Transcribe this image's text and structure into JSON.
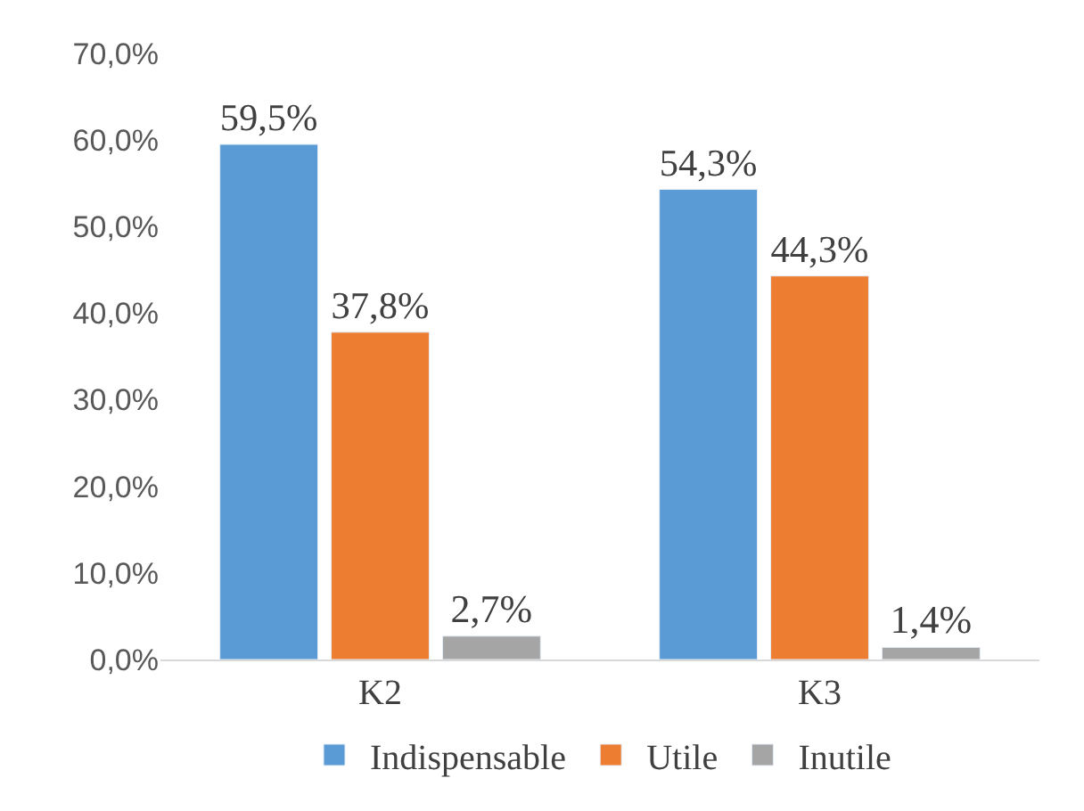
{
  "chart_data": {
    "type": "bar",
    "categories": [
      "K2",
      "K3"
    ],
    "series": [
      {
        "name": "Indispensable",
        "color": "#5b9bd5",
        "values": [
          59.5,
          54.3
        ],
        "value_labels": [
          "59,5%",
          "54,3%"
        ]
      },
      {
        "name": "Utile",
        "color": "#ed7d31",
        "values": [
          37.8,
          44.3
        ],
        "value_labels": [
          "37,8%",
          "44,3%"
        ]
      },
      {
        "name": "Inutile",
        "color": "#a5a5a5",
        "values": [
          2.7,
          1.4
        ],
        "value_labels": [
          "2,7%",
          "1,4%"
        ]
      }
    ],
    "ylim": [
      0,
      70
    ],
    "yticks": [
      {
        "value": 0,
        "label": "0,0%"
      },
      {
        "value": 10,
        "label": "10,0%"
      },
      {
        "value": 20,
        "label": "20,0%"
      },
      {
        "value": 30,
        "label": "30,0%"
      },
      {
        "value": 40,
        "label": "40,0%"
      },
      {
        "value": 50,
        "label": "50,0%"
      },
      {
        "value": 60,
        "label": "60,0%"
      },
      {
        "value": 70,
        "label": "70,0%"
      }
    ],
    "grid": false,
    "legend": "bottom"
  }
}
